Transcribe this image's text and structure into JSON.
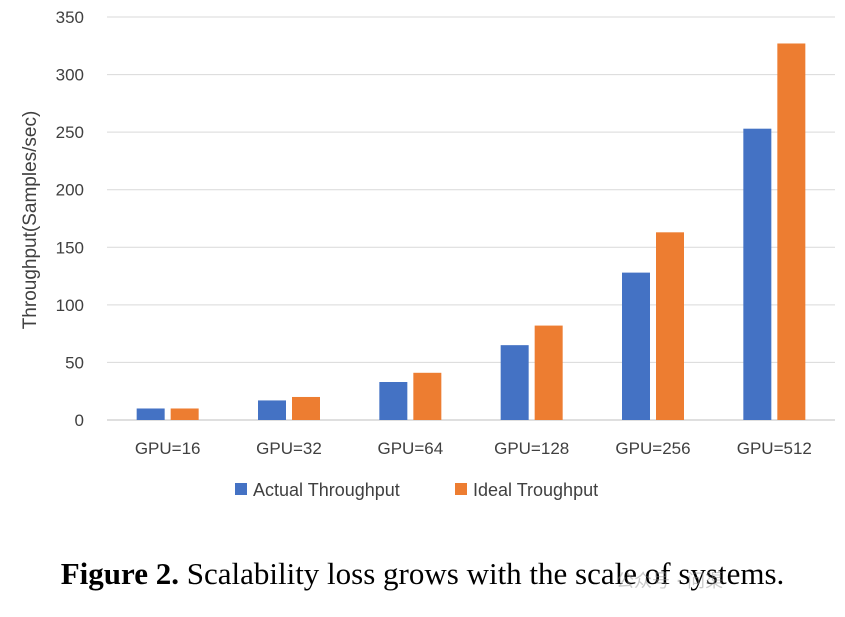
{
  "chart_data": {
    "type": "bar",
    "categories": [
      "GPU=16",
      "GPU=32",
      "GPU=64",
      "GPU=128",
      "GPU=256",
      "GPU=512"
    ],
    "series": [
      {
        "name": "Actual Throughput",
        "color": "#4472C4",
        "values": [
          10,
          17,
          33,
          65,
          128,
          253
        ]
      },
      {
        "name": "Ideal Troughput",
        "color": "#ED7D31",
        "values": [
          10,
          20,
          41,
          82,
          163,
          327
        ]
      }
    ],
    "title": "",
    "xlabel": "",
    "ylabel": "Throughput(Samples/sec)",
    "ylim": [
      0,
      350
    ],
    "yticks": [
      "0",
      "50",
      "100",
      "150",
      "200",
      "250",
      "300",
      "350"
    ],
    "grid": true,
    "legend_position": "bottom"
  },
  "caption": {
    "label": "Figure 2.",
    "text": "Scalability loss grows with the scale of systems."
  },
  "watermark": {
    "text": "公众号 · 问渠"
  }
}
